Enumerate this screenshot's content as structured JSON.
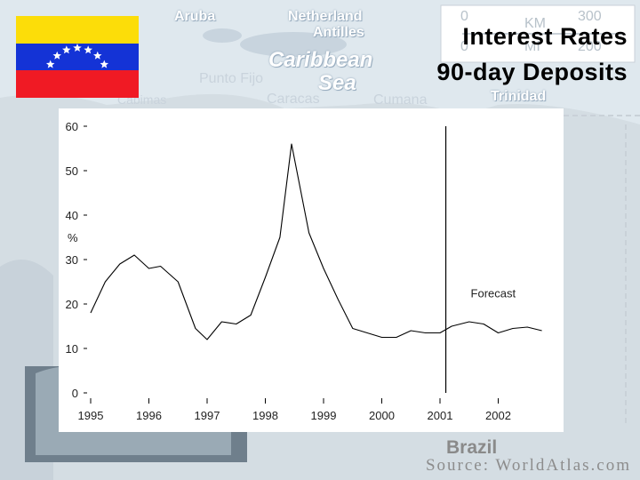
{
  "slide": {
    "title_line1": "Interest Rates",
    "title_line2": "90-day Deposits",
    "source": "Source: WorldAtlas.com"
  },
  "map": {
    "labels": [
      "Aruba",
      "Netherland",
      "Antilles",
      "Caribbean",
      "Sea",
      "Punto Fijo",
      "Caracas",
      "Cumana",
      "Trinidad",
      "Cabimas",
      "Brazil"
    ],
    "scale_top": [
      "0",
      "KM",
      "300"
    ],
    "scale_bottom": [
      "0",
      "MI",
      "200"
    ]
  },
  "flag": {
    "colors": {
      "top": "#fcdd09",
      "middle": "#1433d6",
      "bottom": "#f01a24",
      "stars": "#ffffff"
    }
  },
  "chart_data": {
    "type": "line",
    "title": "",
    "ylabel": "%",
    "xlabel": "",
    "ylim": [
      0,
      60
    ],
    "yticks": [
      0,
      10,
      20,
      30,
      40,
      50,
      60
    ],
    "xlim": [
      1995,
      2003
    ],
    "xticks": [
      "1995",
      "1996",
      "1997",
      "1998",
      "1999",
      "2000",
      "2001",
      "2002"
    ],
    "grid": false,
    "annotations": [
      {
        "text": "Forecast",
        "x": 2001.1,
        "line_x": 2001.1
      }
    ],
    "series": [
      {
        "values": [
          [
            1995.0,
            18
          ],
          [
            1995.25,
            25
          ],
          [
            1995.5,
            29
          ],
          [
            1995.75,
            31
          ],
          [
            1996.0,
            28
          ],
          [
            1996.2,
            28.5
          ],
          [
            1996.5,
            25
          ],
          [
            1996.8,
            14.5
          ],
          [
            1997.0,
            12
          ],
          [
            1997.25,
            16
          ],
          [
            1997.5,
            15.5
          ],
          [
            1997.75,
            17.5
          ],
          [
            1998.0,
            26
          ],
          [
            1998.25,
            35
          ],
          [
            1998.45,
            56
          ],
          [
            1998.75,
            36
          ],
          [
            1999.0,
            28
          ],
          [
            1999.25,
            21
          ],
          [
            1999.5,
            14.5
          ],
          [
            1999.75,
            13.5
          ],
          [
            2000.0,
            12.5
          ],
          [
            2000.25,
            12.5
          ],
          [
            2000.5,
            14
          ],
          [
            2000.75,
            13.5
          ],
          [
            2001.0,
            13.5
          ],
          [
            2001.2,
            15
          ],
          [
            2001.5,
            16
          ],
          [
            2001.75,
            15.5
          ],
          [
            2002.0,
            13.5
          ],
          [
            2002.25,
            14.5
          ],
          [
            2002.5,
            14.8
          ],
          [
            2002.75,
            14
          ]
        ]
      }
    ]
  }
}
